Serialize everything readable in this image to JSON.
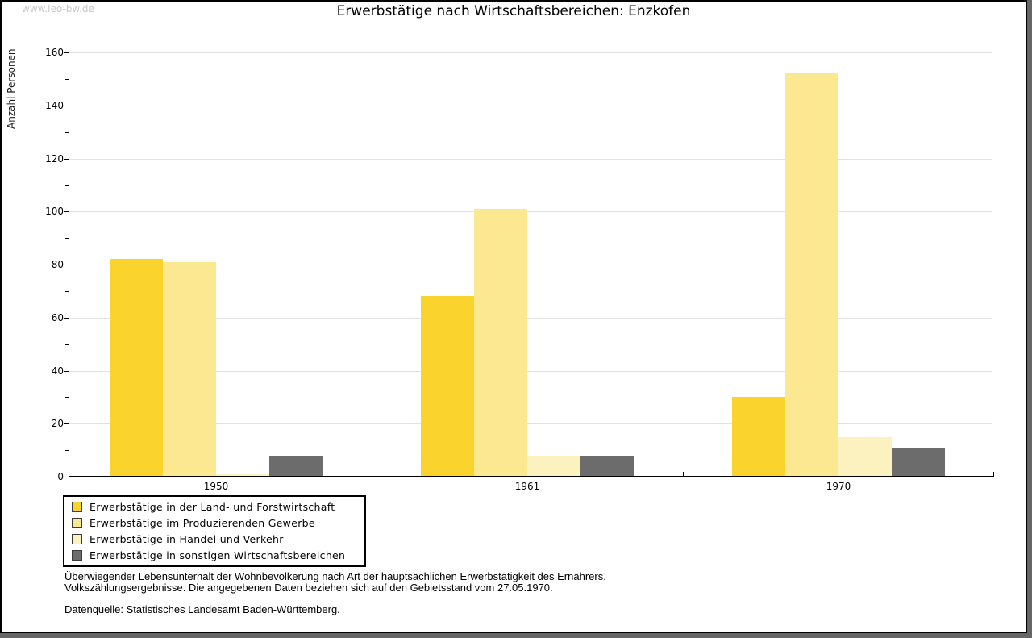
{
  "watermark": "www.leo-bw.de",
  "title": "Erwerbstätige nach Wirtschaftsbereichen: Enzkofen",
  "chart_data": {
    "type": "bar",
    "title": "Erwerbstätige nach Wirtschaftsbereichen: Enzkofen",
    "ylabel": "Anzahl Personen",
    "xlabel": "",
    "categories": [
      "1950",
      "1961",
      "1970"
    ],
    "series": [
      {
        "name": "Erwerbstätige in der Land- und Forstwirtschaft",
        "color": "#FBD32D",
        "values": [
          82,
          68,
          30
        ]
      },
      {
        "name": "Erwerbstätige im Produzierenden Gewerbe",
        "color": "#FBE890",
        "values": [
          81,
          101,
          152
        ]
      },
      {
        "name": "Erwerbstätige in Handel und Verkehr",
        "color": "#FBF2C0",
        "values": [
          1,
          8,
          15
        ]
      },
      {
        "name": "Erwerbstätige in sonstigen Wirtschaftsbereichen",
        "color": "#6C6C6C",
        "values": [
          8,
          8,
          11
        ]
      }
    ],
    "ylim": [
      0,
      160
    ],
    "ytick_step": 20,
    "yminor_step": 10,
    "grid": "horizontal",
    "gridline_color": "#E2E2E2",
    "axis_color": "#000000",
    "legend_position": "bottom-left"
  },
  "footnotes": [
    "Überwiegender Lebensunterhalt der Wohnbevölkerung nach Art der hauptsächlichen Erwerbstätigkeit des Ernährers.",
    "Volkszählungsergebnisse. Die angegebenen Daten beziehen sich auf den Gebietsstand vom 27.05.1970.",
    "Datenquelle: Statistisches Landesamt Baden-Württemberg."
  ],
  "colors": {
    "watermark": "#C8C8C8",
    "frame_shadow": "#666666",
    "frame_border": "#000000"
  }
}
